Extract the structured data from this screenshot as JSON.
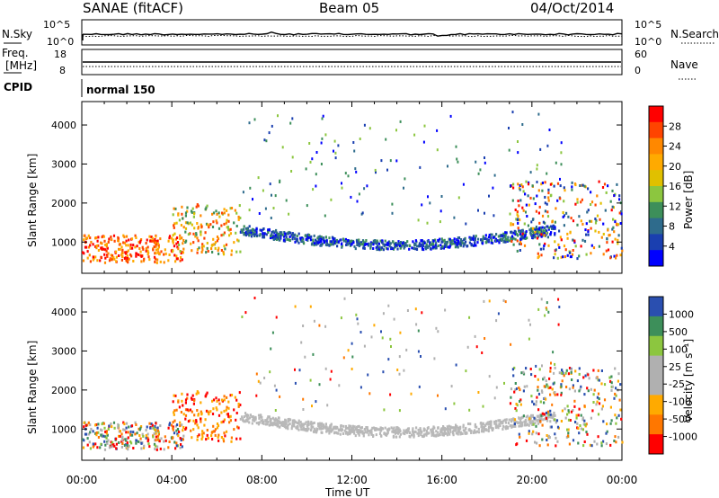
{
  "header": {
    "station": "SANAE (fitACF)",
    "beam": "Beam 05",
    "date": "04/Oct/2014"
  },
  "noise_panel": {
    "left_label": "N.Sky",
    "right_label": "N.Search",
    "left_ticks": [
      "10^5",
      "10^0"
    ],
    "right_ticks": [
      "10^5",
      "10^0"
    ]
  },
  "freq_panel": {
    "left_label_1": "Freq.",
    "left_label_2": "[MHz]",
    "right_label": "Nave",
    "left_ticks": [
      "18",
      "8"
    ],
    "right_ticks": [
      "60",
      "0"
    ]
  },
  "cpid_panel": {
    "label": "CPID",
    "mode": "normal 150"
  },
  "chart_data": [
    {
      "type": "heatmap",
      "ylabel": "Slant Range [km]",
      "yticks": [
        "4000",
        "3000",
        "2000",
        "1000"
      ],
      "ylim": [
        200,
        4600
      ],
      "xlim": [
        0,
        24
      ],
      "colorbar": {
        "label": "Power [dB]",
        "ticks": [
          "28",
          "24",
          "20",
          "16",
          "12",
          "8",
          "4"
        ],
        "colors": [
          "#ff0000",
          "#ff4400",
          "#ff8800",
          "#ffaa00",
          "#e0c000",
          "#8cc63f",
          "#3d8f5a",
          "#2e6b8c",
          "#1a3fb0",
          "#0000ff"
        ]
      },
      "regions": [
        {
          "t0": 0.0,
          "t1": 4.5,
          "r0": 500,
          "r1": 1200,
          "value": "high"
        },
        {
          "t0": 4.0,
          "t1": 7.0,
          "r0": 700,
          "r1": 2000,
          "value": "mid"
        },
        {
          "t0": 7.0,
          "t1": 21.0,
          "r0": 900,
          "r1": 1500,
          "value": "low"
        },
        {
          "t0": 19.0,
          "t1": 24.0,
          "r0": 600,
          "r1": 2600,
          "value": "mixed"
        }
      ]
    },
    {
      "type": "heatmap",
      "ylabel": "Slant Range [km]",
      "yticks": [
        "4000",
        "3000",
        "2000",
        "1000"
      ],
      "ylim": [
        200,
        4600
      ],
      "xlim": [
        0,
        24
      ],
      "colorbar": {
        "label": "Velocity [m s⁻¹]",
        "ticks": [
          "1000",
          "500",
          "100",
          "25",
          "-25",
          "-100",
          "-500",
          "-1000"
        ],
        "colors": [
          "#2a4fb0",
          "#3d8f5a",
          "#8cc63f",
          "#b0b0b0",
          "#b0b0b0",
          "#ffaa00",
          "#ff7700",
          "#ff0000"
        ]
      },
      "regions": [
        {
          "t0": 0.0,
          "t1": 4.5,
          "r0": 500,
          "r1": 1200,
          "value": "mixed"
        },
        {
          "t0": 4.0,
          "t1": 7.0,
          "r0": 700,
          "r1": 2000,
          "value": "negative"
        },
        {
          "t0": 7.0,
          "t1": 21.0,
          "r0": 900,
          "r1": 1500,
          "value": "zero"
        },
        {
          "t0": 19.0,
          "t1": 24.0,
          "r0": 600,
          "r1": 2600,
          "value": "mixed"
        }
      ]
    }
  ],
  "time_axis": {
    "label": "Time UT",
    "ticks": [
      "00:00",
      "04:00",
      "08:00",
      "12:00",
      "16:00",
      "20:00",
      "00:00"
    ]
  }
}
